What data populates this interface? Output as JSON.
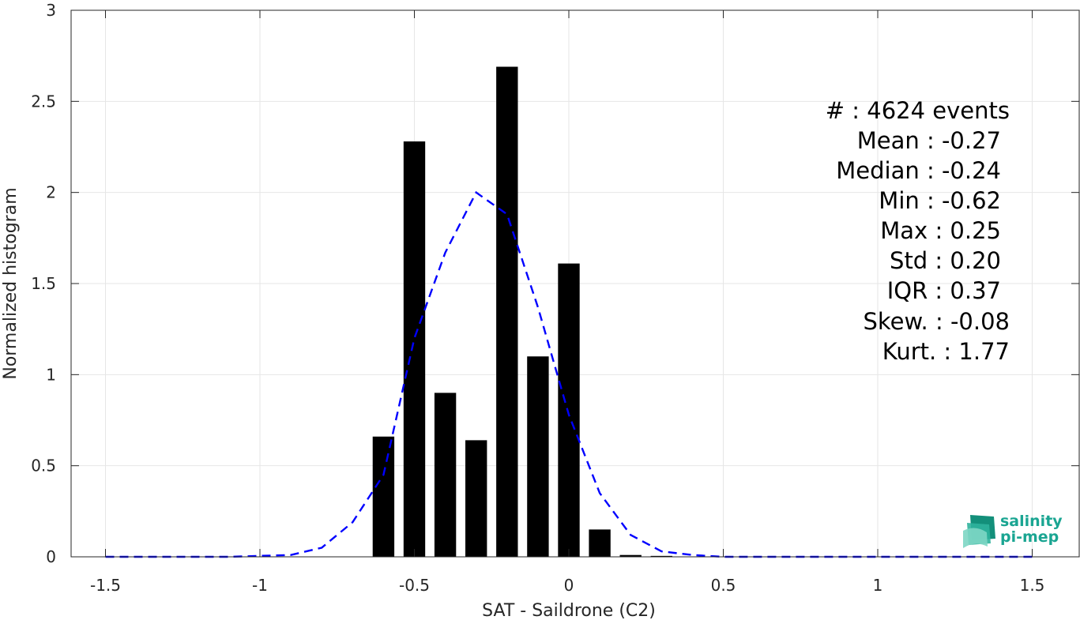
{
  "chart_data": {
    "type": "bar",
    "xlabel": "SAT - Saildrone (C2)",
    "ylabel": "Normalized histogram",
    "xlim": [
      -1.5,
      1.5
    ],
    "ylim": [
      0,
      3
    ],
    "grid": true,
    "xticks": [
      -1.5,
      -1,
      -0.5,
      0,
      0.5,
      1,
      1.5
    ],
    "xtick_labels": [
      "-1.5",
      "-1",
      "-0.5",
      "0",
      "0.5",
      "1",
      "1.5"
    ],
    "yticks": [
      0,
      0.5,
      1,
      1.5,
      2,
      2.5,
      3
    ],
    "ytick_labels": [
      "0",
      "0.5",
      "1",
      "1.5",
      "2",
      "2.5",
      "3"
    ],
    "histogram": {
      "bin_centers": [
        -0.6,
        -0.5,
        -0.4,
        -0.3,
        -0.2,
        -0.1,
        0.0,
        0.1,
        0.2,
        0.3
      ],
      "values": [
        0.66,
        2.28,
        0.9,
        0.64,
        2.69,
        1.1,
        1.61,
        0.15,
        0.01,
        0.005
      ],
      "bar_width": 0.07,
      "color": "#000000"
    },
    "fit_curve": {
      "style": "dashed",
      "color": "#0000ff",
      "x": [
        -1.5,
        -1.4,
        -1.3,
        -1.2,
        -1.1,
        -1.0,
        -0.9,
        -0.8,
        -0.7,
        -0.6,
        -0.5,
        -0.4,
        -0.3,
        -0.2,
        -0.1,
        0.0,
        0.1,
        0.2,
        0.3,
        0.4,
        0.5,
        0.6,
        0.7,
        0.8,
        0.9,
        1.0,
        1.1,
        1.2,
        1.3,
        1.4,
        1.5
      ],
      "y": [
        0.0,
        0.0,
        0.0,
        0.0,
        0.0,
        0.005,
        0.01,
        0.05,
        0.19,
        0.45,
        1.2,
        1.67,
        2.0,
        1.88,
        1.37,
        0.78,
        0.35,
        0.12,
        0.03,
        0.01,
        0.0,
        0.0,
        0.0,
        0.0,
        0.0,
        0.0,
        0.0,
        0.0,
        0.0,
        0.0,
        0.0
      ]
    },
    "annotations": [
      "#  : 4624 events",
      "Mean : -0.27",
      "Median : -0.24",
      "Min : -0.62",
      "Max : 0.25",
      "Std : 0.20",
      "IQR : 0.37",
      "Skew. : -0.08",
      "Kurt. : 1.77"
    ]
  },
  "logo": {
    "line1": "salinity",
    "line2": "pi-mep",
    "color": "#1aa592"
  }
}
